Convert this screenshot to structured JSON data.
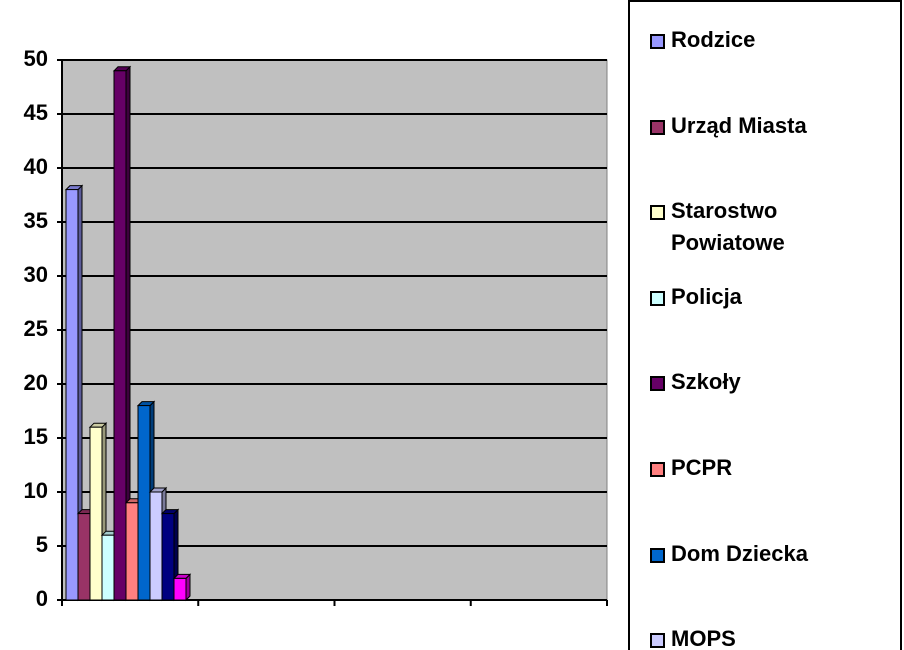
{
  "chart_data": {
    "type": "bar3d",
    "categories": [
      null,
      null,
      null,
      null
    ],
    "ylim": [
      0,
      50
    ],
    "yticks": [
      0,
      5,
      10,
      15,
      20,
      25,
      30,
      35,
      40,
      45,
      50
    ],
    "grid": true,
    "series": [
      {
        "name": "Rodzice",
        "color": "#9999ff",
        "values": [
          38,
          null,
          null,
          null
        ]
      },
      {
        "name": "Urząd Miasta",
        "color": "#993366",
        "values": [
          8,
          null,
          null,
          null
        ]
      },
      {
        "name": "Starostwo Powiatowe",
        "color": "#ffffcc",
        "values": [
          16,
          null,
          null,
          null
        ]
      },
      {
        "name": "Policja",
        "color": "#ccffff",
        "values": [
          6,
          null,
          null,
          null
        ]
      },
      {
        "name": "Szkoły",
        "color": "#660066",
        "values": [
          49,
          null,
          null,
          null
        ]
      },
      {
        "name": "PCPR",
        "color": "#ff8080",
        "values": [
          9,
          null,
          null,
          null
        ]
      },
      {
        "name": "Dom Dziecka",
        "color": "#0066cc",
        "values": [
          18,
          null,
          null,
          null
        ]
      },
      {
        "name": "MOPS",
        "color": "#ccccff",
        "values": [
          10,
          null,
          null,
          null
        ]
      },
      {
        "color": "#000080",
        "values": [
          8,
          null,
          null,
          null
        ]
      },
      {
        "color": "#ff00ff",
        "values": [
          2,
          null,
          null,
          null
        ]
      }
    ]
  }
}
